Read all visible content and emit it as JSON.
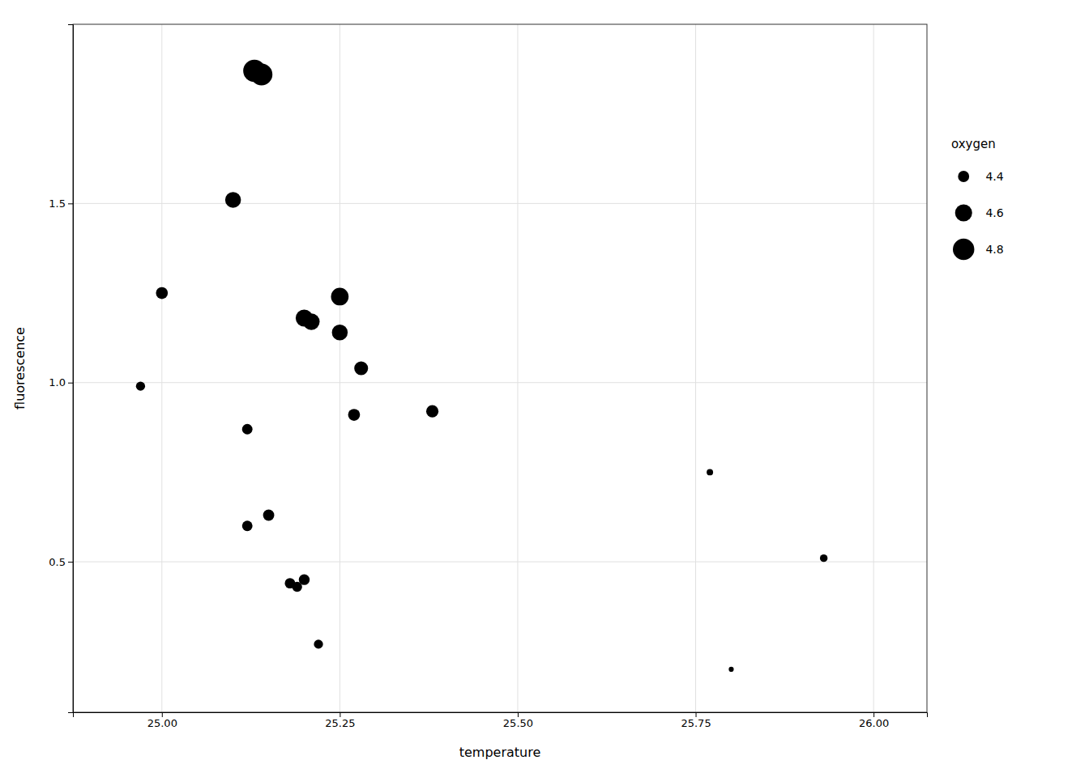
{
  "chart_data": {
    "type": "scatter",
    "x": [
      24.97,
      25.0,
      25.1,
      25.12,
      25.12,
      25.13,
      25.14,
      25.15,
      25.18,
      25.19,
      25.2,
      25.2,
      25.21,
      25.22,
      25.25,
      25.25,
      25.27,
      25.28,
      25.38,
      25.77,
      25.8,
      25.93
    ],
    "values": [
      0.99,
      1.25,
      1.51,
      0.87,
      0.6,
      1.87,
      1.86,
      0.63,
      0.44,
      0.43,
      0.45,
      1.18,
      1.17,
      0.27,
      1.24,
      1.14,
      0.91,
      1.04,
      0.92,
      0.75,
      0.2,
      0.51
    ],
    "sizes": [
      4.35,
      4.42,
      4.55,
      4.38,
      4.38,
      4.85,
      4.82,
      4.4,
      4.38,
      4.37,
      4.39,
      4.6,
      4.58,
      4.35,
      4.62,
      4.55,
      4.42,
      4.48,
      4.43,
      4.3,
      4.28,
      4.32
    ],
    "x_label": "temperature",
    "y_label": "fluorescence",
    "size_title": "oxygen",
    "size_legend": [
      4.4,
      4.6,
      4.8
    ],
    "legend": "right",
    "color": "#000000",
    "xlim": [
      24.875,
      26.075
    ],
    "ylim": [
      0.08,
      2.0
    ],
    "xticks": [
      {
        "value": 25.0,
        "label": "25.00"
      },
      {
        "value": 25.25,
        "label": "25.25"
      },
      {
        "value": 25.5,
        "label": "25.50"
      },
      {
        "value": 25.75,
        "label": "25.75"
      },
      {
        "value": 26.0,
        "label": "26.00"
      }
    ],
    "yticks": [
      0.5,
      {
        "value": 1.0,
        "label": "1.0"
      },
      1.5
    ],
    "grid": true
  }
}
